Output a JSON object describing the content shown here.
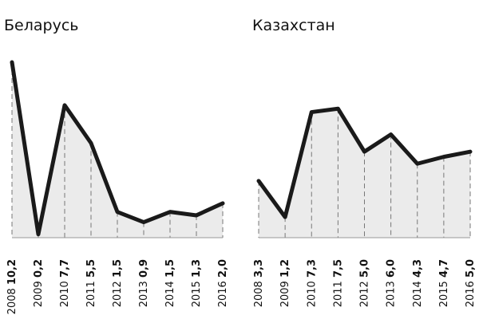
{
  "chart_data": [
    {
      "type": "line",
      "title": "Беларусь",
      "categories": [
        "2008",
        "2009",
        "2010",
        "2011",
        "2012",
        "2013",
        "2014",
        "2015",
        "2016"
      ],
      "values": [
        10.2,
        0.2,
        7.7,
        5.5,
        1.5,
        0.9,
        1.5,
        1.3,
        2.0
      ],
      "value_labels": [
        "10,2",
        "0,2",
        "7,7",
        "5,5",
        "1,5",
        "0,9",
        "1,5",
        "1,3",
        "2,0"
      ],
      "ylim": [
        0,
        10.2
      ],
      "color": "#1a1a1a",
      "fill": "#ebebeb"
    },
    {
      "type": "line",
      "title": "Казахстан",
      "categories": [
        "2008",
        "2009",
        "2010",
        "2011",
        "2012",
        "2013",
        "2014",
        "2015",
        "2016"
      ],
      "values": [
        3.3,
        1.2,
        7.3,
        7.5,
        5.0,
        6.0,
        4.3,
        4.7,
        5.0
      ],
      "value_labels": [
        "3,3",
        "1,2",
        "7,3",
        "7,5",
        "5,0",
        "6,0",
        "4,3",
        "4,7",
        "5,0"
      ],
      "ylim": [
        0,
        10.2
      ],
      "color": "#1a1a1a",
      "fill": "#ebebeb"
    }
  ]
}
